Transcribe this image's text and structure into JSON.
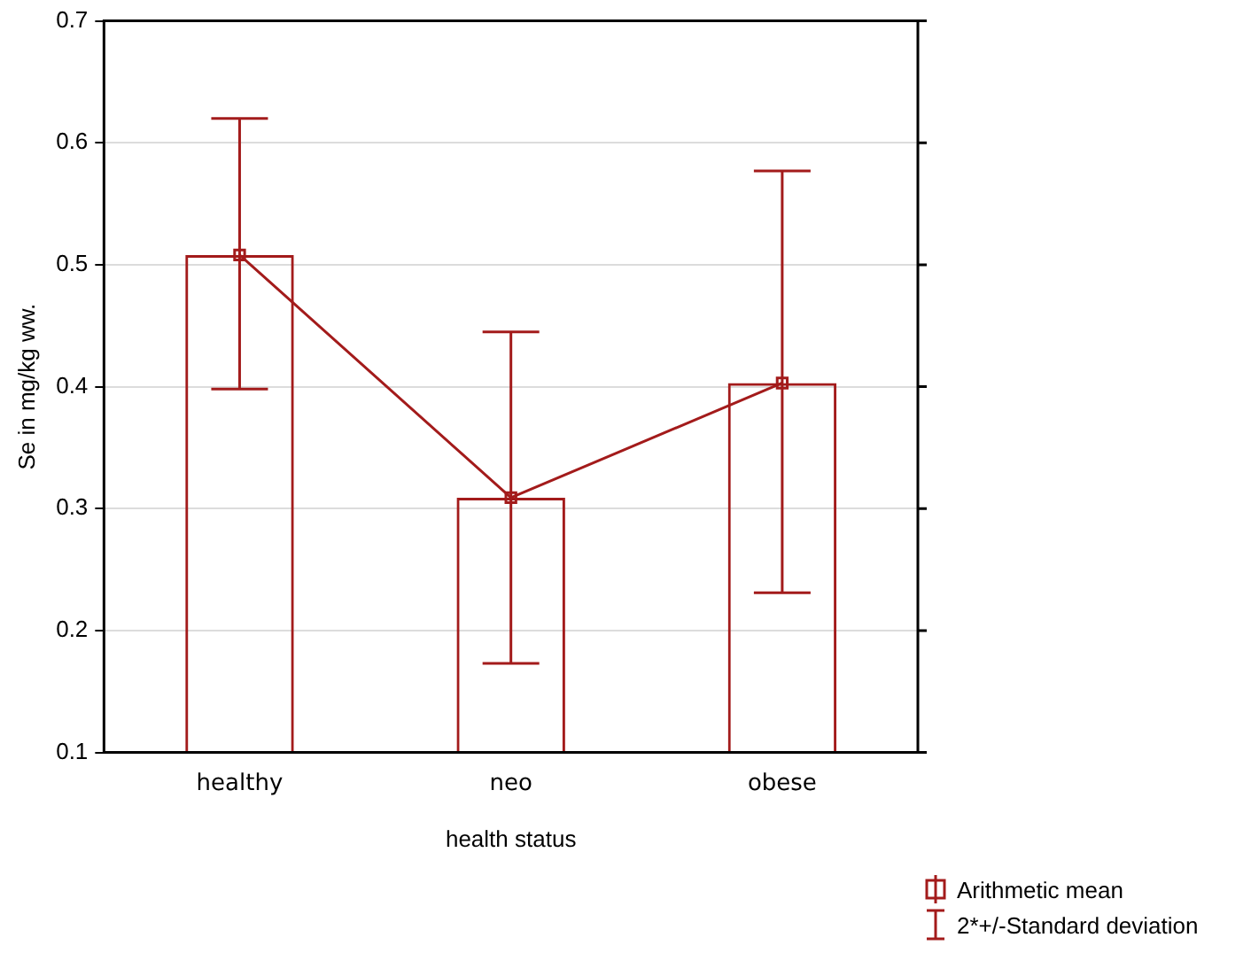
{
  "chart_data": {
    "type": "bar",
    "xlabel": "health status",
    "ylabel": "Se in mg/kg ww.",
    "categories": [
      "healthy",
      "neo",
      "obese"
    ],
    "series": [
      {
        "color": "#a31b1b",
        "values": [
          0.508,
          0.309,
          0.403
        ],
        "errors": [
          [
            0.398,
            0.62
          ],
          [
            0.173,
            0.445
          ],
          [
            0.231,
            0.577
          ]
        ]
      },
      {
        "type": "line",
        "name": "Arithmetic mean",
        "color": "#a31b1b",
        "values": [
          0.508,
          0.309,
          0.403
        ],
        "marker": "square"
      }
    ],
    "annotations": [
      "2*+/-Standard deviation"
    ],
    "ylim": [
      0.1,
      0.7
    ],
    "yticks": [
      0.1,
      0.2,
      0.3,
      0.4,
      0.5,
      0.6,
      0.7
    ],
    "grid": "y",
    "legend": "bottom right"
  }
}
